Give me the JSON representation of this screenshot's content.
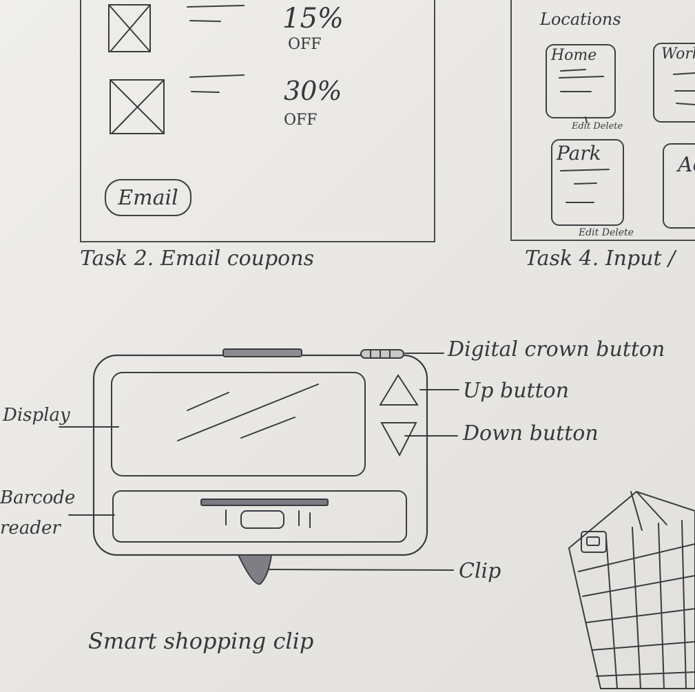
{
  "task2": {
    "coupons": [
      {
        "percent": "15%",
        "off": "OFF"
      },
      {
        "percent": "30%",
        "off": "OFF"
      }
    ],
    "email_button": "Email",
    "caption": "Task 2. Email coupons"
  },
  "task4": {
    "heading": "Locations",
    "cards": [
      {
        "title": "Home",
        "actions": "Edit Delete"
      },
      {
        "title": "Work"
      },
      {
        "title": "Park",
        "actions": "Edit Delete"
      },
      {
        "title": "Ac"
      }
    ],
    "caption": "Task 4. Input /"
  },
  "device": {
    "labels": {
      "crown": "Digital crown button",
      "up": "Up button",
      "down": "Down button",
      "display": "Display",
      "barcode_line1": "Barcode",
      "barcode_line2": "reader",
      "clip": "Clip"
    },
    "caption": "Smart shopping clip"
  },
  "colors": {
    "ink": "#2e2e33",
    "paper": "#ecebe7"
  }
}
